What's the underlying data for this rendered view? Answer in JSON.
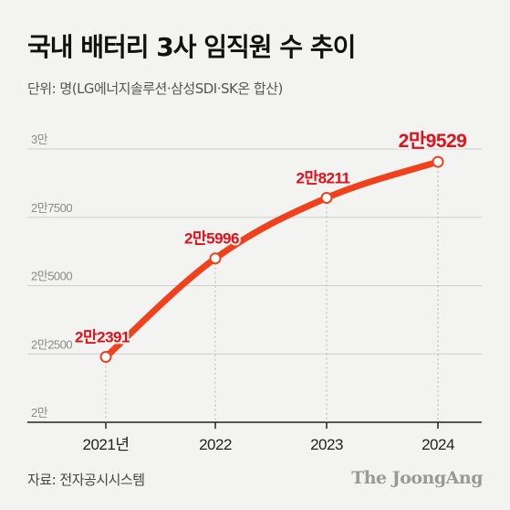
{
  "title": "국내 배터리 3사 임직원 수 추이",
  "unit_note": "단위: 명(LG에너지솔루션·삼성SDI·SK온 합산)",
  "source": "자료: 전자공시시스템",
  "brand": "The JoongAng",
  "colors": {
    "line": "#f0411c",
    "label": "#e3101a",
    "grid": "#cfcfcf",
    "background": "#f3f3f1"
  },
  "chart_data": {
    "type": "line",
    "x": [
      "2021년",
      "2022",
      "2023",
      "2024"
    ],
    "series": [
      {
        "values": [
          22391,
          25996,
          28211,
          29529
        ],
        "labels": [
          "2만2391",
          "2만5996",
          "2만8211",
          "2만9529"
        ]
      }
    ],
    "ylim": [
      20000,
      30000
    ],
    "yticks": [
      {
        "value": 30000,
        "label": "3만"
      },
      {
        "value": 27500,
        "label": "2만7500"
      },
      {
        "value": 25000,
        "label": "2만5000"
      },
      {
        "value": 22500,
        "label": "2만2500"
      },
      {
        "value": 20000,
        "label": "2만"
      }
    ],
    "grid": true
  }
}
